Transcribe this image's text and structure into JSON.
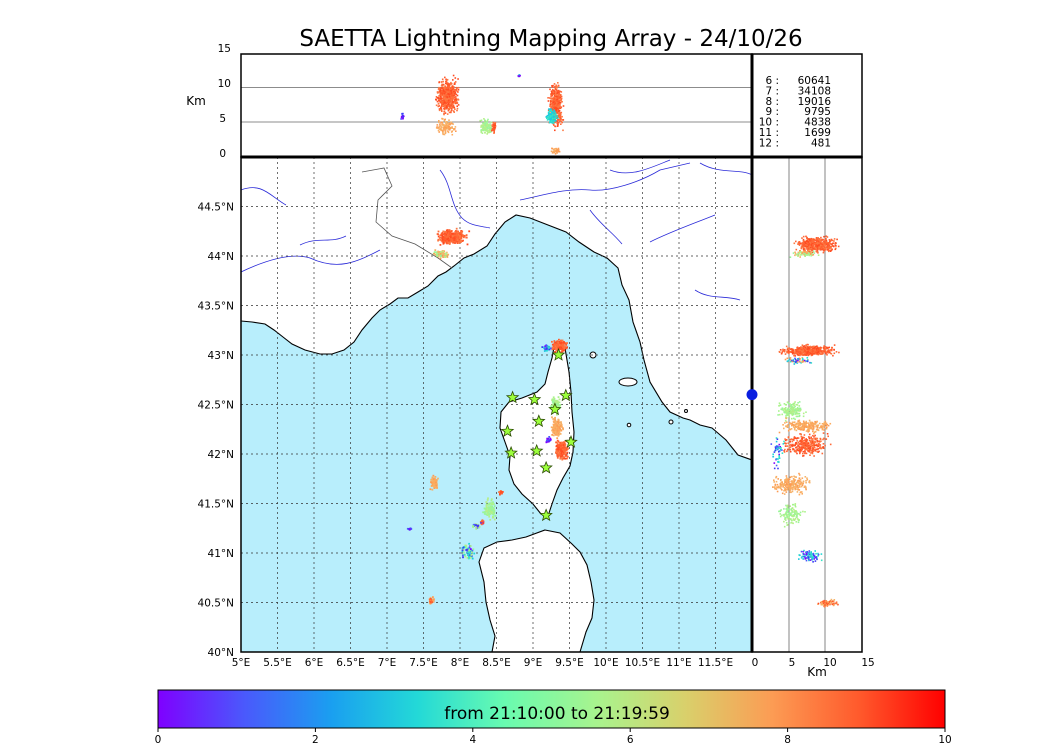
{
  "title": "SAETTA Lightning Mapping Array - 24/10/26",
  "map": {
    "lon_range": [
      5,
      12
    ],
    "lat_range": [
      40,
      45
    ],
    "lon_ticks": [
      "5°E",
      "5.5°E",
      "6°E",
      "6.5°E",
      "7°E",
      "7.5°E",
      "8°E",
      "8.5°E",
      "9°E",
      "9.5°E",
      "10°E",
      "10.5°E",
      "11°E",
      "11.5°E"
    ],
    "lat_ticks": [
      "40°N",
      "40.5°N",
      "41°N",
      "41.5°N",
      "42°N",
      "42.5°N",
      "43°N",
      "43.5°N",
      "44°N",
      "44.5°N"
    ],
    "sea_color": "#b8eefc",
    "coast_color": "#000000",
    "river_color": "#2a2ad8",
    "grid": "dotted"
  },
  "altitude_top": {
    "ylabel": "Km",
    "yticks": [
      "0",
      "5",
      "10",
      "15"
    ],
    "y_range": [
      0,
      15
    ]
  },
  "altitude_side": {
    "xlabel": "Km",
    "xticks": [
      "0",
      "5",
      "10",
      "15"
    ],
    "x_range": [
      0,
      15
    ]
  },
  "counts": [
    {
      "station": "6 :",
      "count": "60641",
      "color": "#000000"
    },
    {
      "station": "7 :",
      "count": "34108",
      "color": "#e00000"
    },
    {
      "station": "8 :",
      "count": "19016",
      "color": "#000000"
    },
    {
      "station": "9 :",
      "count": "9795",
      "color": "#000000"
    },
    {
      "station": "10 :",
      "count": "4838",
      "color": "#000000"
    },
    {
      "station": "11 :",
      "count": "1699",
      "color": "#000000"
    },
    {
      "station": "12 :",
      "count": "481",
      "color": "#000000"
    }
  ],
  "stations": {
    "color": "#9cff3c",
    "points": [
      [
        8.72,
        42.57
      ],
      [
        9.02,
        42.55
      ],
      [
        9.3,
        42.45
      ],
      [
        9.45,
        42.59
      ],
      [
        9.08,
        42.33
      ],
      [
        8.65,
        42.23
      ],
      [
        8.7,
        42.01
      ],
      [
        9.05,
        42.03
      ],
      [
        9.52,
        42.12
      ],
      [
        9.18,
        41.86
      ],
      [
        9.18,
        41.38
      ],
      [
        9.35,
        43.0
      ]
    ]
  },
  "marker_lmae": {
    "lon": 12.0,
    "lat": 42.6,
    "color": "#0a1ee0"
  },
  "colorbar": {
    "label": "from 21:10:00 to 21:19:59",
    "ticks": [
      "0",
      "2",
      "4",
      "6",
      "8",
      "10"
    ],
    "stops": [
      "#7f00ff",
      "#4a59fc",
      "#1a9ff0",
      "#23d9d7",
      "#68fbb0",
      "#a9f38d",
      "#d9d06b",
      "#fc9c54",
      "#ff5a2c",
      "#ff0000"
    ]
  },
  "chart_data": [
    {
      "type": "scatter",
      "title": "SAETTA Lightning Mapping Array - 24/10/26",
      "xlabel": "",
      "ylabel": "",
      "xlim": [
        5,
        12
      ],
      "ylim": [
        40,
        45
      ],
      "series": [
        {
          "values": [
            [
              7.8,
              44.2
            ],
            [
              7.7,
              44.0
            ],
            [
              7.95,
              44.25
            ]
          ],
          "color": "#ff5a2c"
        },
        {
          "values": [
            [
              9.38,
              43.1
            ],
            [
              9.2,
              43.1
            ],
            [
              9.1,
              43.05
            ]
          ],
          "color": "#ff5a2c"
        },
        {
          "values": [
            [
              9.3,
              42.5
            ],
            [
              9.3,
              42.3
            ],
            [
              9.4,
              42.0
            ]
          ],
          "color": "#ff6a40"
        },
        {
          "values": [
            [
              7.62,
              41.75
            ],
            [
              7.65,
              41.6
            ]
          ],
          "color": "#fc9c54"
        },
        {
          "values": [
            [
              8.4,
              41.55
            ],
            [
              8.35,
              41.4
            ]
          ],
          "color": "#a9f38d"
        },
        {
          "values": [
            [
              8.2,
              41.15
            ],
            [
              8.1,
              41.0
            ],
            [
              7.95,
              40.95
            ]
          ],
          "color": "#23d9d7"
        },
        {
          "values": [
            [
              7.6,
              40.52
            ]
          ],
          "color": "#ff5a2c"
        }
      ]
    },
    {
      "type": "scatter",
      "title": "",
      "xlabel": "",
      "ylabel": "Km",
      "xlim": [
        5,
        12
      ],
      "ylim": [
        0,
        15
      ],
      "series": [
        {
          "values": [
            [
              7.85,
              9
            ],
            [
              7.85,
              6
            ],
            [
              7.75,
              12
            ]
          ],
          "color": "#ff5a2c"
        },
        {
          "values": [
            [
              8.35,
              4.5
            ],
            [
              8.45,
              5
            ]
          ],
          "color": "#a9f38d"
        },
        {
          "values": [
            [
              9.3,
              8
            ],
            [
              9.3,
              4
            ],
            [
              9.35,
              12
            ]
          ],
          "color": "#ff5a2c"
        },
        {
          "values": [
            [
              9.25,
              5.5
            ]
          ],
          "color": "#23d9d7"
        }
      ]
    },
    {
      "type": "scatter",
      "title": "",
      "xlabel": "Km",
      "ylabel": "",
      "xlim": [
        0,
        15
      ],
      "ylim": [
        40,
        45
      ],
      "series": [
        {
          "values": [
            [
              8,
              44.15
            ],
            [
              10,
              44.15
            ],
            [
              6,
              44.1
            ]
          ],
          "color": "#ff5a2c"
        },
        {
          "values": [
            [
              6,
              43.05
            ],
            [
              9,
              43.05
            ],
            [
              11,
              43.05
            ]
          ],
          "color": "#ff5a2c"
        },
        {
          "values": [
            [
              4,
              42.45
            ],
            [
              5,
              42.4
            ]
          ],
          "color": "#a9f38d"
        },
        {
          "values": [
            [
              7,
              42.3
            ]
          ],
          "color": "#fc9c54"
        },
        {
          "values": [
            [
              7,
              42.05
            ],
            [
              9,
              42.0
            ]
          ],
          "color": "#ff5a2c"
        },
        {
          "values": [
            [
              5,
              41.7
            ],
            [
              7,
              41.65
            ]
          ],
          "color": "#fc9c54"
        },
        {
          "values": [
            [
              6,
              41.5
            ],
            [
              4.5,
              41.35
            ]
          ],
          "color": "#a9f38d"
        },
        {
          "values": [
            [
              7,
              41.0
            ]
          ],
          "color": "#23d9d7"
        },
        {
          "values": [
            [
              10,
              40.5
            ]
          ],
          "color": "#ff5a2c"
        }
      ]
    }
  ]
}
